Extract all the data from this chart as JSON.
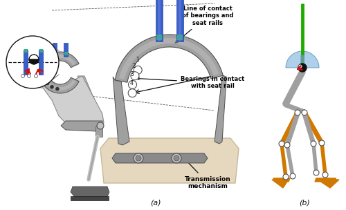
{
  "label_a": "(a)",
  "label_b": "(b)",
  "annotation1": "Line of contact\nof bearings and\nseat rails",
  "annotation2": "Bearings in contact\nwith seat rail",
  "annotation3": "Transmission\nmechanism",
  "bearing_labels": [
    "1",
    "2",
    "3",
    "4"
  ],
  "bg_color": "#ffffff",
  "gray_rail": "#8a8a8a",
  "gray_light": "#c0c0c0",
  "gray_med": "#a0a0a0",
  "dark_gray": "#505050",
  "light_beige": "#e5d8bf",
  "beige_edge": "#c8b898",
  "orange_color": "#d07800",
  "green_color": "#22aa00",
  "blue_color": "#a0c8e8",
  "blue_dark": "#3355aa",
  "teal_color": "#33aa88",
  "red_color": "#cc1111",
  "black_color": "#111111",
  "rail_blue": "#3a5fc8"
}
